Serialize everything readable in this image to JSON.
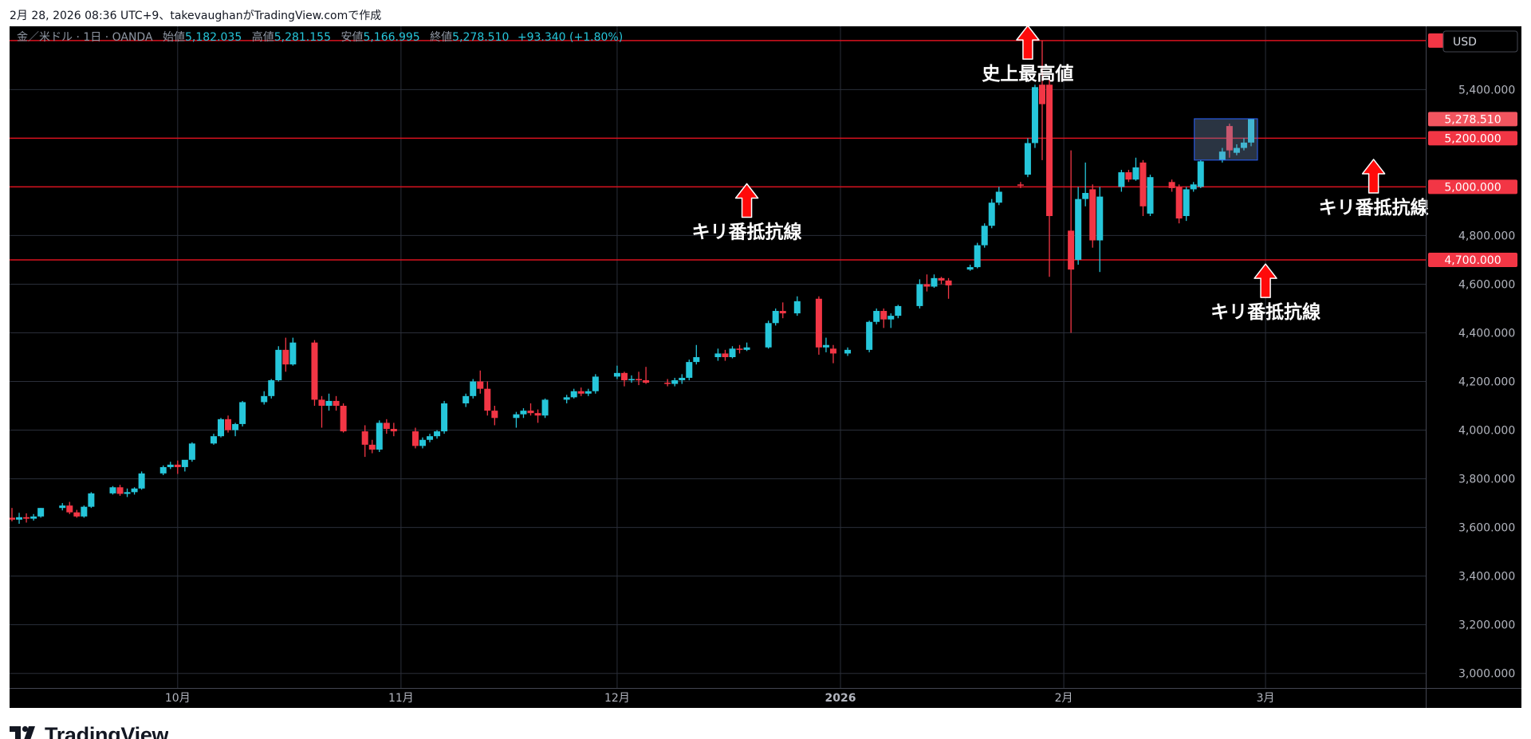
{
  "header": {
    "caption": "2月 28, 2026 08:36 UTC+9、takevaughanがTradingView.comで作成"
  },
  "legend": {
    "symbol": "金／米ドル · 1日 · OANDA",
    "open_label": "始値",
    "open": "5,182.035",
    "high_label": "高値",
    "high": "5,281.155",
    "low_label": "安値",
    "low": "5,166.995",
    "close_label": "終値",
    "close": "5,278.510",
    "change": "+93.340 (+1.80%)"
  },
  "currency_button": "USD",
  "brand": "TradingView",
  "colors": {
    "up": "#26c6da",
    "down": "#f23645",
    "line": "#d9121f",
    "grid": "#2a2e39"
  },
  "chart_data": {
    "type": "candlestick",
    "y_range": [
      2940,
      5660
    ],
    "y_ticks": [
      {
        "value": 3000,
        "label": "3,000.000"
      },
      {
        "value": 3200,
        "label": "3,200.000"
      },
      {
        "value": 3400,
        "label": "3,400.000"
      },
      {
        "value": 3600,
        "label": "3,600.000"
      },
      {
        "value": 3800,
        "label": "3,800.000"
      },
      {
        "value": 4000,
        "label": "4,000.000"
      },
      {
        "value": 4200,
        "label": "4,200.000"
      },
      {
        "value": 4400,
        "label": "4,400.000"
      },
      {
        "value": 4600,
        "label": "4,600.000"
      },
      {
        "value": 4800,
        "label": "4,800.000"
      },
      {
        "value": 5000,
        "label": "5,000.000"
      },
      {
        "value": 5400,
        "label": "5,400.000"
      }
    ],
    "x_ticks": [
      {
        "date": "2025-10-01",
        "label": "10月",
        "bold": false
      },
      {
        "date": "2025-11-01",
        "label": "11月",
        "bold": false
      },
      {
        "date": "2025-12-01",
        "label": "12月",
        "bold": false
      },
      {
        "date": "2026-01-01",
        "label": "2026",
        "bold": true
      },
      {
        "date": "2026-02-01",
        "label": "2月",
        "bold": false
      },
      {
        "date": "2026-03-01",
        "label": "3月",
        "bold": false
      }
    ],
    "horizontal_lines": [
      {
        "value": 5601.421,
        "label": "5,601.421"
      },
      {
        "value": 5200,
        "label": "5,200.000"
      },
      {
        "value": 5000,
        "label": "5,000.000"
      },
      {
        "value": 4700,
        "label": "4,700.000"
      }
    ],
    "last_price": {
      "value": 5278.51,
      "label": "5,278.510"
    },
    "annotations": [
      {
        "text": "史上最高値",
        "date": "2026-01-27",
        "value": 5440,
        "arrow": "up"
      },
      {
        "text": "キリ番抵抗線",
        "date": "2025-12-19",
        "value": 4790,
        "arrow": "up"
      },
      {
        "text": "キリ番抵抗線",
        "date": "2026-03-16",
        "value": 4890,
        "arrow": "up"
      },
      {
        "text": "キリ番抵抗線",
        "date": "2026-03-01",
        "value": 4460,
        "arrow": "up"
      }
    ],
    "highlight_box": {
      "from": "2026-02-20",
      "to": "2026-02-27",
      "low": 5110,
      "high": 5280
    },
    "candles": [
      {
        "d": "2025-09-08",
        "o": 3640,
        "h": 3680,
        "l": 3625,
        "c": 3632
      },
      {
        "d": "2025-09-09",
        "o": 3632,
        "h": 3660,
        "l": 3615,
        "c": 3642
      },
      {
        "d": "2025-09-10",
        "o": 3642,
        "h": 3658,
        "l": 3620,
        "c": 3636
      },
      {
        "d": "2025-09-11",
        "o": 3636,
        "h": 3655,
        "l": 3628,
        "c": 3645
      },
      {
        "d": "2025-09-12",
        "o": 3645,
        "h": 3680,
        "l": 3640,
        "c": 3680
      },
      {
        "d": "2025-09-15",
        "o": 3680,
        "h": 3700,
        "l": 3670,
        "c": 3690
      },
      {
        "d": "2025-09-16",
        "o": 3690,
        "h": 3705,
        "l": 3655,
        "c": 3662
      },
      {
        "d": "2025-09-17",
        "o": 3662,
        "h": 3672,
        "l": 3640,
        "c": 3645
      },
      {
        "d": "2025-09-18",
        "o": 3645,
        "h": 3690,
        "l": 3640,
        "c": 3685
      },
      {
        "d": "2025-09-19",
        "o": 3685,
        "h": 3745,
        "l": 3680,
        "c": 3740
      },
      {
        "d": "2025-09-22",
        "o": 3740,
        "h": 3770,
        "l": 3735,
        "c": 3765
      },
      {
        "d": "2025-09-23",
        "o": 3765,
        "h": 3775,
        "l": 3730,
        "c": 3738
      },
      {
        "d": "2025-09-24",
        "o": 3738,
        "h": 3760,
        "l": 3725,
        "c": 3745
      },
      {
        "d": "2025-09-25",
        "o": 3745,
        "h": 3765,
        "l": 3735,
        "c": 3760
      },
      {
        "d": "2025-09-26",
        "o": 3760,
        "h": 3830,
        "l": 3755,
        "c": 3822
      },
      {
        "d": "2025-09-29",
        "o": 3822,
        "h": 3855,
        "l": 3815,
        "c": 3848
      },
      {
        "d": "2025-09-30",
        "o": 3848,
        "h": 3870,
        "l": 3840,
        "c": 3858
      },
      {
        "d": "2025-10-01",
        "o": 3858,
        "h": 3875,
        "l": 3820,
        "c": 3848
      },
      {
        "d": "2025-10-02",
        "o": 3848,
        "h": 3870,
        "l": 3830,
        "c": 3878
      },
      {
        "d": "2025-10-03",
        "o": 3878,
        "h": 3950,
        "l": 3870,
        "c": 3945
      },
      {
        "d": "2025-10-06",
        "o": 3945,
        "h": 3985,
        "l": 3940,
        "c": 3975
      },
      {
        "d": "2025-10-07",
        "o": 3975,
        "h": 4050,
        "l": 3970,
        "c": 4045
      },
      {
        "d": "2025-10-08",
        "o": 4045,
        "h": 4060,
        "l": 3990,
        "c": 4000
      },
      {
        "d": "2025-10-09",
        "o": 4000,
        "h": 4030,
        "l": 3975,
        "c": 4025
      },
      {
        "d": "2025-10-10",
        "o": 4025,
        "h": 4120,
        "l": 4015,
        "c": 4115
      },
      {
        "d": "2025-10-13",
        "o": 4115,
        "h": 4160,
        "l": 4105,
        "c": 4140
      },
      {
        "d": "2025-10-14",
        "o": 4140,
        "h": 4210,
        "l": 4130,
        "c": 4205
      },
      {
        "d": "2025-10-15",
        "o": 4205,
        "h": 4345,
        "l": 4200,
        "c": 4330
      },
      {
        "d": "2025-10-16",
        "o": 4330,
        "h": 4380,
        "l": 4240,
        "c": 4270
      },
      {
        "d": "2025-10-17",
        "o": 4270,
        "h": 4380,
        "l": 4265,
        "c": 4360
      },
      {
        "d": "2025-10-20",
        "o": 4360,
        "h": 4370,
        "l": 4100,
        "c": 4125
      },
      {
        "d": "2025-10-21",
        "o": 4125,
        "h": 4140,
        "l": 4010,
        "c": 4100
      },
      {
        "d": "2025-10-22",
        "o": 4100,
        "h": 4150,
        "l": 4080,
        "c": 4120
      },
      {
        "d": "2025-10-23",
        "o": 4120,
        "h": 4140,
        "l": 4080,
        "c": 4100
      },
      {
        "d": "2025-10-24",
        "o": 4100,
        "h": 4110,
        "l": 3990,
        "c": 3995
      },
      {
        "d": "2025-10-27",
        "o": 3995,
        "h": 4020,
        "l": 3890,
        "c": 3940
      },
      {
        "d": "2025-10-28",
        "o": 3940,
        "h": 3960,
        "l": 3905,
        "c": 3920
      },
      {
        "d": "2025-10-29",
        "o": 3920,
        "h": 4040,
        "l": 3910,
        "c": 4030
      },
      {
        "d": "2025-10-30",
        "o": 4030,
        "h": 4045,
        "l": 3985,
        "c": 4005
      },
      {
        "d": "2025-10-31",
        "o": 4005,
        "h": 4030,
        "l": 3975,
        "c": 3995
      },
      {
        "d": "2025-11-03",
        "o": 3995,
        "h": 4010,
        "l": 3925,
        "c": 3935
      },
      {
        "d": "2025-11-04",
        "o": 3935,
        "h": 3970,
        "l": 3925,
        "c": 3960
      },
      {
        "d": "2025-11-05",
        "o": 3960,
        "h": 3985,
        "l": 3950,
        "c": 3975
      },
      {
        "d": "2025-11-06",
        "o": 3975,
        "h": 4000,
        "l": 3965,
        "c": 3995
      },
      {
        "d": "2025-11-07",
        "o": 3995,
        "h": 4120,
        "l": 3985,
        "c": 4110
      },
      {
        "d": "2025-11-10",
        "o": 4110,
        "h": 4150,
        "l": 4095,
        "c": 4140
      },
      {
        "d": "2025-11-11",
        "o": 4140,
        "h": 4210,
        "l": 4130,
        "c": 4200
      },
      {
        "d": "2025-11-12",
        "o": 4200,
        "h": 4245,
        "l": 4150,
        "c": 4170
      },
      {
        "d": "2025-11-13",
        "o": 4170,
        "h": 4200,
        "l": 4060,
        "c": 4080
      },
      {
        "d": "2025-11-14",
        "o": 4080,
        "h": 4100,
        "l": 4020,
        "c": 4050
      },
      {
        "d": "2025-11-17",
        "o": 4050,
        "h": 4075,
        "l": 4010,
        "c": 4065
      },
      {
        "d": "2025-11-18",
        "o": 4065,
        "h": 4090,
        "l": 4050,
        "c": 4080
      },
      {
        "d": "2025-11-19",
        "o": 4080,
        "h": 4110,
        "l": 4060,
        "c": 4070
      },
      {
        "d": "2025-11-20",
        "o": 4070,
        "h": 4085,
        "l": 4030,
        "c": 4060
      },
      {
        "d": "2025-11-21",
        "o": 4060,
        "h": 4130,
        "l": 4050,
        "c": 4125
      },
      {
        "d": "2025-11-24",
        "o": 4125,
        "h": 4145,
        "l": 4110,
        "c": 4135
      },
      {
        "d": "2025-11-25",
        "o": 4135,
        "h": 4170,
        "l": 4130,
        "c": 4160
      },
      {
        "d": "2025-11-26",
        "o": 4160,
        "h": 4175,
        "l": 4140,
        "c": 4150
      },
      {
        "d": "2025-11-27",
        "o": 4150,
        "h": 4170,
        "l": 4140,
        "c": 4160
      },
      {
        "d": "2025-11-28",
        "o": 4160,
        "h": 4230,
        "l": 4150,
        "c": 4220
      },
      {
        "d": "2025-12-01",
        "o": 4220,
        "h": 4265,
        "l": 4210,
        "c": 4235
      },
      {
        "d": "2025-12-02",
        "o": 4235,
        "h": 4240,
        "l": 4180,
        "c": 4205
      },
      {
        "d": "2025-12-03",
        "o": 4205,
        "h": 4225,
        "l": 4195,
        "c": 4210
      },
      {
        "d": "2025-12-04",
        "o": 4210,
        "h": 4240,
        "l": 4185,
        "c": 4205
      },
      {
        "d": "2025-12-05",
        "o": 4205,
        "h": 4260,
        "l": 4190,
        "c": 4195
      },
      {
        "d": "2025-12-08",
        "o": 4195,
        "h": 4210,
        "l": 4180,
        "c": 4190
      },
      {
        "d": "2025-12-09",
        "o": 4190,
        "h": 4215,
        "l": 4180,
        "c": 4205
      },
      {
        "d": "2025-12-10",
        "o": 4205,
        "h": 4230,
        "l": 4190,
        "c": 4215
      },
      {
        "d": "2025-12-11",
        "o": 4215,
        "h": 4290,
        "l": 4205,
        "c": 4280
      },
      {
        "d": "2025-12-12",
        "o": 4280,
        "h": 4350,
        "l": 4270,
        "c": 4300
      },
      {
        "d": "2025-12-15",
        "o": 4300,
        "h": 4335,
        "l": 4285,
        "c": 4315
      },
      {
        "d": "2025-12-16",
        "o": 4315,
        "h": 4330,
        "l": 4285,
        "c": 4300
      },
      {
        "d": "2025-12-17",
        "o": 4300,
        "h": 4345,
        "l": 4295,
        "c": 4335
      },
      {
        "d": "2025-12-18",
        "o": 4335,
        "h": 4350,
        "l": 4315,
        "c": 4330
      },
      {
        "d": "2025-12-19",
        "o": 4330,
        "h": 4360,
        "l": 4325,
        "c": 4340
      },
      {
        "d": "2025-12-22",
        "o": 4340,
        "h": 4450,
        "l": 4335,
        "c": 4440
      },
      {
        "d": "2025-12-23",
        "o": 4440,
        "h": 4500,
        "l": 4430,
        "c": 4490
      },
      {
        "d": "2025-12-24",
        "o": 4490,
        "h": 4525,
        "l": 4460,
        "c": 4480
      },
      {
        "d": "2025-12-26",
        "o": 4480,
        "h": 4550,
        "l": 4470,
        "c": 4530
      },
      {
        "d": "2025-12-29",
        "o": 4540,
        "h": 4550,
        "l": 4310,
        "c": 4340
      },
      {
        "d": "2025-12-30",
        "o": 4340,
        "h": 4380,
        "l": 4320,
        "c": 4350
      },
      {
        "d": "2025-12-31",
        "o": 4335,
        "h": 4350,
        "l": 4275,
        "c": 4315
      },
      {
        "d": "2026-01-02",
        "o": 4315,
        "h": 4340,
        "l": 4305,
        "c": 4330
      },
      {
        "d": "2026-01-05",
        "o": 4330,
        "h": 4450,
        "l": 4320,
        "c": 4445
      },
      {
        "d": "2026-01-06",
        "o": 4445,
        "h": 4500,
        "l": 4435,
        "c": 4490
      },
      {
        "d": "2026-01-07",
        "o": 4490,
        "h": 4500,
        "l": 4420,
        "c": 4455
      },
      {
        "d": "2026-01-08",
        "o": 4455,
        "h": 4480,
        "l": 4420,
        "c": 4470
      },
      {
        "d": "2026-01-09",
        "o": 4470,
        "h": 4515,
        "l": 4460,
        "c": 4510
      },
      {
        "d": "2026-01-12",
        "o": 4510,
        "h": 4620,
        "l": 4500,
        "c": 4600
      },
      {
        "d": "2026-01-13",
        "o": 4600,
        "h": 4640,
        "l": 4570,
        "c": 4590
      },
      {
        "d": "2026-01-14",
        "o": 4590,
        "h": 4640,
        "l": 4585,
        "c": 4625
      },
      {
        "d": "2026-01-15",
        "o": 4625,
        "h": 4630,
        "l": 4600,
        "c": 4615
      },
      {
        "d": "2026-01-16",
        "o": 4615,
        "h": 4625,
        "l": 4540,
        "c": 4595
      },
      {
        "d": "2026-01-19",
        "o": 4660,
        "h": 4680,
        "l": 4655,
        "c": 4670
      },
      {
        "d": "2026-01-20",
        "o": 4670,
        "h": 4770,
        "l": 4665,
        "c": 4760
      },
      {
        "d": "2026-01-21",
        "o": 4760,
        "h": 4850,
        "l": 4750,
        "c": 4840
      },
      {
        "d": "2026-01-22",
        "o": 4840,
        "h": 4950,
        "l": 4830,
        "c": 4935
      },
      {
        "d": "2026-01-23",
        "o": 4935,
        "h": 5000,
        "l": 4925,
        "c": 4980
      },
      {
        "d": "2026-01-26",
        "o": 5010,
        "h": 5020,
        "l": 4995,
        "c": 5005
      },
      {
        "d": "2026-01-27",
        "o": 5050,
        "h": 5200,
        "l": 5040,
        "c": 5180
      },
      {
        "d": "2026-01-28",
        "o": 5180,
        "h": 5420,
        "l": 5160,
        "c": 5410
      },
      {
        "d": "2026-01-29",
        "o": 5420,
        "h": 5601,
        "l": 5110,
        "c": 5340
      },
      {
        "d": "2026-01-30",
        "o": 5420,
        "h": 5450,
        "l": 4630,
        "c": 4880
      },
      {
        "d": "2026-02-02",
        "o": 4820,
        "h": 5150,
        "l": 4400,
        "c": 4660
      },
      {
        "d": "2026-02-03",
        "o": 4700,
        "h": 5000,
        "l": 4680,
        "c": 4950
      },
      {
        "d": "2026-02-04",
        "o": 4950,
        "h": 5100,
        "l": 4920,
        "c": 4975
      },
      {
        "d": "2026-02-05",
        "o": 4990,
        "h": 5010,
        "l": 4750,
        "c": 4780
      },
      {
        "d": "2026-02-06",
        "o": 4780,
        "h": 5000,
        "l": 4650,
        "c": 4960
      },
      {
        "d": "2026-02-09",
        "o": 5000,
        "h": 5070,
        "l": 4980,
        "c": 5060
      },
      {
        "d": "2026-02-10",
        "o": 5060,
        "h": 5070,
        "l": 5020,
        "c": 5030
      },
      {
        "d": "2026-02-11",
        "o": 5030,
        "h": 5120,
        "l": 5025,
        "c": 5080
      },
      {
        "d": "2026-02-12",
        "o": 5100,
        "h": 5110,
        "l": 4880,
        "c": 4920
      },
      {
        "d": "2026-02-13",
        "o": 4890,
        "h": 5050,
        "l": 4880,
        "c": 5040
      },
      {
        "d": "2026-02-16",
        "o": 5020,
        "h": 5030,
        "l": 4980,
        "c": 4995
      },
      {
        "d": "2026-02-17",
        "o": 5000,
        "h": 5010,
        "l": 4850,
        "c": 4870
      },
      {
        "d": "2026-02-18",
        "o": 4880,
        "h": 5000,
        "l": 4860,
        "c": 4990
      },
      {
        "d": "2026-02-19",
        "o": 4990,
        "h": 5020,
        "l": 4980,
        "c": 5010
      },
      {
        "d": "2026-02-20",
        "o": 5000,
        "h": 5110,
        "l": 4995,
        "c": 5105
      },
      {
        "d": "2026-02-23",
        "o": 5110,
        "h": 5160,
        "l": 5100,
        "c": 5145
      },
      {
        "d": "2026-02-24",
        "o": 5250,
        "h": 5260,
        "l": 5120,
        "c": 5150
      },
      {
        "d": "2026-02-25",
        "o": 5140,
        "h": 5175,
        "l": 5130,
        "c": 5160
      },
      {
        "d": "2026-02-26",
        "o": 5160,
        "h": 5200,
        "l": 5150,
        "c": 5182
      },
      {
        "d": "2026-02-27",
        "o": 5182.035,
        "h": 5281.155,
        "l": 5166.995,
        "c": 5278.51
      }
    ]
  }
}
